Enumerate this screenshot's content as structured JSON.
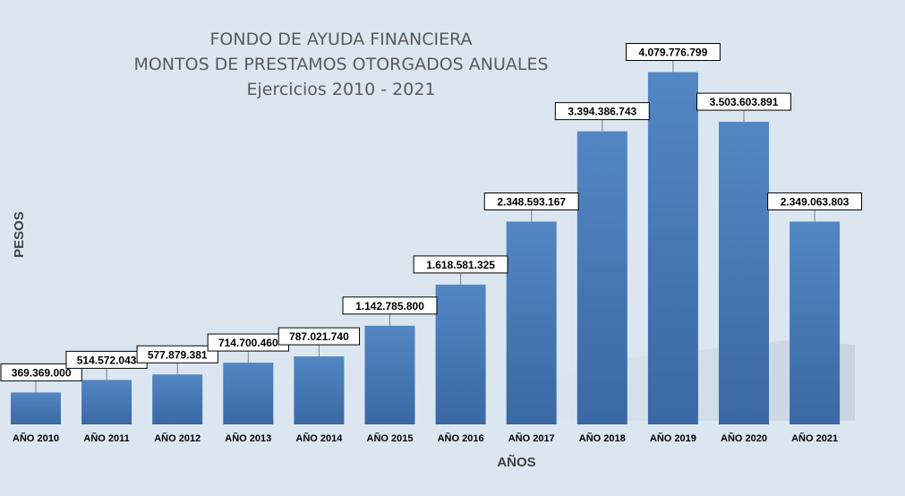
{
  "chart_data": {
    "type": "bar",
    "title": "FONDO DE AYUDA FINANCIERA",
    "subtitle": "MONTOS DE PRESTAMOS OTORGADOS ANUALES",
    "subtitle2": "Ejercicios 2010 - 2021",
    "xlabel": "AÑOS",
    "ylabel": "PESOS",
    "categories": [
      "AÑO 2010",
      "AÑO 2011",
      "AÑO 2012",
      "AÑO 2013",
      "AÑO 2014",
      "AÑO 2015",
      "AÑO 2016",
      "AÑO 2017",
      "AÑO 2018",
      "AÑO 2019",
      "AÑO 2020",
      "AÑO 2021"
    ],
    "values": [
      369369000,
      514572043,
      577879381,
      714700460,
      787021740,
      1142785800,
      1618581325,
      2348593167,
      3394386743,
      4079776799,
      3503603891,
      2349063803
    ],
    "value_labels": [
      "369.369.000",
      "514.572.043",
      "577.879.381",
      "714.700.460",
      "787.021.740",
      "1.142.785.800",
      "1.618.581.325",
      "2.348.593.167",
      "3.394.386.743",
      "4.079.776.799",
      "3.503.603.891",
      "2.349.063.803"
    ],
    "ylim": [
      0,
      4500000000
    ],
    "grid": false,
    "legend": "none",
    "colors": {
      "background": "#dce6f1",
      "bar_top": "#4f81bd",
      "bar_bottom": "#3a6aa8"
    }
  }
}
